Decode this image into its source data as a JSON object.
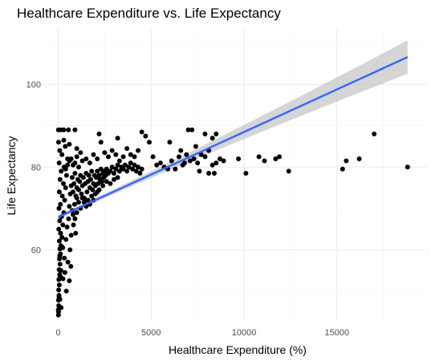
{
  "chart_data": {
    "type": "scatter",
    "title": "Healthcare Expenditure vs. Life Expectancy",
    "xlabel": "Healthcare Expenditure (%)",
    "ylabel": "Life Expectancy",
    "xlim": [
      -800,
      19800
    ],
    "ylim": [
      43,
      114
    ],
    "x_ticks": [
      0,
      5000,
      10000,
      15000
    ],
    "x_tick_labels": [
      "0",
      "5000",
      "10000",
      "15000"
    ],
    "y_ticks": [
      60,
      80,
      100
    ],
    "y_tick_labels": [
      "60",
      "80",
      "100"
    ],
    "grid": true,
    "point_color": "#000000",
    "fit": {
      "method": "linear",
      "color": "#3366ff",
      "band_color": "#bebebe",
      "x": [
        0,
        18800
      ],
      "y": [
        67.9,
        106.6
      ]
    },
    "points": [
      [
        10,
        44.2
      ],
      [
        20,
        45.0
      ],
      [
        30,
        46.5
      ],
      [
        15,
        47.8
      ],
      [
        40,
        49.0
      ],
      [
        25,
        50.3
      ],
      [
        60,
        51.5
      ],
      [
        35,
        52.8
      ],
      [
        80,
        54.0
      ],
      [
        50,
        55.2
      ],
      [
        100,
        56.5
      ],
      [
        70,
        57.8
      ],
      [
        120,
        59.0
      ],
      [
        90,
        60.2
      ],
      [
        150,
        61.0
      ],
      [
        60,
        62.1
      ],
      [
        200,
        63.0
      ],
      [
        130,
        64.0
      ],
      [
        30,
        65.0
      ],
      [
        250,
        66.0
      ],
      [
        80,
        67.0
      ],
      [
        180,
        68.0
      ],
      [
        300,
        69.0
      ],
      [
        40,
        70.0
      ],
      [
        120,
        71.0
      ],
      [
        350,
        72.0
      ],
      [
        220,
        73.0
      ],
      [
        60,
        74.0
      ],
      [
        400,
        75.0
      ],
      [
        280,
        76.0
      ],
      [
        100,
        77.0
      ],
      [
        450,
        78.0
      ],
      [
        160,
        79.0
      ],
      [
        320,
        80.0
      ],
      [
        50,
        81.0
      ],
      [
        500,
        82.0
      ],
      [
        200,
        83.0
      ],
      [
        80,
        84.0
      ],
      [
        380,
        85.0
      ],
      [
        20,
        86.0
      ],
      [
        10,
        89.0
      ],
      [
        150,
        89.0
      ],
      [
        300,
        89.0
      ],
      [
        550,
        89.0
      ],
      [
        900,
        89.0
      ],
      [
        5,
        45.5
      ],
      [
        45,
        48.5
      ],
      [
        110,
        53.5
      ],
      [
        75,
        58.5
      ],
      [
        140,
        55.0
      ],
      [
        260,
        53.0
      ],
      [
        330,
        58.0
      ],
      [
        420,
        62.5
      ],
      [
        480,
        65.5
      ],
      [
        560,
        67.5
      ],
      [
        640,
        60.0
      ],
      [
        700,
        63.5
      ],
      [
        760,
        69.5
      ],
      [
        820,
        66.0
      ],
      [
        880,
        71.0
      ],
      [
        940,
        64.0
      ],
      [
        1000,
        72.5
      ],
      [
        520,
        57.0
      ],
      [
        600,
        52.5
      ],
      [
        680,
        56.0
      ],
      [
        240,
        60.5
      ],
      [
        360,
        54.5
      ],
      [
        440,
        50.0
      ],
      [
        160,
        46.0
      ],
      [
        90,
        48.0
      ],
      [
        600,
        70.5
      ],
      [
        650,
        73.5
      ],
      [
        700,
        75.5
      ],
      [
        750,
        77.5
      ],
      [
        800,
        74.0
      ],
      [
        850,
        76.0
      ],
      [
        900,
        78.5
      ],
      [
        950,
        73.0
      ],
      [
        1000,
        75.0
      ],
      [
        1050,
        77.0
      ],
      [
        1100,
        74.5
      ],
      [
        1150,
        76.5
      ],
      [
        1200,
        78.0
      ],
      [
        1250,
        73.5
      ],
      [
        1300,
        75.5
      ],
      [
        1350,
        77.5
      ],
      [
        1400,
        72.5
      ],
      [
        1450,
        76.0
      ],
      [
        1500,
        78.5
      ],
      [
        1550,
        74.0
      ],
      [
        1600,
        76.5
      ],
      [
        1650,
        78.0
      ],
      [
        1700,
        75.0
      ],
      [
        1750,
        77.0
      ],
      [
        1800,
        79.0
      ],
      [
        1850,
        74.5
      ],
      [
        1900,
        76.0
      ],
      [
        1950,
        78.0
      ],
      [
        2000,
        75.5
      ],
      [
        2050,
        77.5
      ],
      [
        2100,
        79.0
      ],
      [
        2150,
        76.0
      ],
      [
        2200,
        78.0
      ],
      [
        2250,
        77.0
      ],
      [
        2300,
        79.5
      ],
      [
        2350,
        76.5
      ],
      [
        2400,
        78.5
      ],
      [
        2450,
        77.5
      ],
      [
        2500,
        79.0
      ],
      [
        2550,
        78.0
      ],
      [
        2600,
        79.5
      ],
      [
        2700,
        78.5
      ],
      [
        2800,
        79.0
      ],
      [
        2900,
        80.0
      ],
      [
        3000,
        78.5
      ],
      [
        3100,
        79.5
      ],
      [
        3200,
        80.5
      ],
      [
        3300,
        79.0
      ],
      [
        3400,
        80.0
      ],
      [
        3500,
        79.5
      ],
      [
        3600,
        80.5
      ],
      [
        3700,
        79.0
      ],
      [
        3800,
        80.0
      ],
      [
        3900,
        81.0
      ],
      [
        4000,
        79.5
      ],
      [
        4100,
        80.5
      ],
      [
        4200,
        79.0
      ],
      [
        4300,
        80.0
      ],
      [
        4400,
        78.5
      ],
      [
        4500,
        79.5
      ],
      [
        1200,
        70.0
      ],
      [
        1400,
        71.5
      ],
      [
        1600,
        72.0
      ],
      [
        1800,
        73.0
      ],
      [
        2000,
        73.5
      ],
      [
        2200,
        74.5
      ],
      [
        1000,
        69.0
      ],
      [
        1100,
        71.5
      ],
      [
        1300,
        72.5
      ],
      [
        1500,
        70.5
      ],
      [
        1700,
        71.0
      ],
      [
        900,
        67.5
      ],
      [
        800,
        68.5
      ],
      [
        1900,
        72.0
      ],
      [
        2100,
        74.0
      ],
      [
        2400,
        75.5
      ],
      [
        2600,
        76.5
      ],
      [
        2800,
        76.0
      ],
      [
        3000,
        77.0
      ],
      [
        3200,
        77.5
      ],
      [
        400,
        79.5
      ],
      [
        500,
        80.5
      ],
      [
        600,
        81.5
      ],
      [
        700,
        82.0
      ],
      [
        800,
        80.5
      ],
      [
        900,
        81.0
      ],
      [
        1000,
        82.5
      ],
      [
        1100,
        80.0
      ],
      [
        1200,
        83.5
      ],
      [
        1300,
        81.5
      ],
      [
        1500,
        82.0
      ],
      [
        1700,
        81.0
      ],
      [
        1900,
        83.0
      ],
      [
        2100,
        82.0
      ],
      [
        2300,
        86.0
      ],
      [
        2500,
        83.5
      ],
      [
        2700,
        82.5
      ],
      [
        2900,
        84.0
      ],
      [
        3100,
        83.0
      ],
      [
        3300,
        81.5
      ],
      [
        3500,
        82.5
      ],
      [
        3700,
        84.5
      ],
      [
        3900,
        83.0
      ],
      [
        4100,
        82.5
      ],
      [
        4300,
        84.0
      ],
      [
        4500,
        88.5
      ],
      [
        4700,
        87.5
      ],
      [
        4900,
        86.0
      ],
      [
        5100,
        82.5
      ],
      [
        5300,
        80.5
      ],
      [
        2200,
        88.0
      ],
      [
        3200,
        87.0
      ],
      [
        300,
        86.5
      ],
      [
        600,
        85.5
      ],
      [
        1000,
        84.5
      ],
      [
        5500,
        81.0
      ],
      [
        5700,
        80.0
      ],
      [
        5900,
        79.5
      ],
      [
        6100,
        81.5
      ],
      [
        6300,
        79.5
      ],
      [
        6500,
        82.5
      ],
      [
        6700,
        80.5
      ],
      [
        6900,
        83.0
      ],
      [
        7100,
        81.5
      ],
      [
        7300,
        82.0
      ],
      [
        7500,
        81.0
      ],
      [
        7700,
        83.0
      ],
      [
        7900,
        82.5
      ],
      [
        8100,
        84.0
      ],
      [
        8300,
        80.5
      ],
      [
        8500,
        81.0
      ],
      [
        8700,
        82.0
      ],
      [
        8900,
        81.5
      ],
      [
        6000,
        86.0
      ],
      [
        6600,
        84.0
      ],
      [
        7000,
        89.0
      ],
      [
        7200,
        89.0
      ],
      [
        7400,
        85.0
      ],
      [
        7900,
        88.0
      ],
      [
        8300,
        87.0
      ],
      [
        8500,
        88.0
      ],
      [
        7600,
        79.0
      ],
      [
        8100,
        78.5
      ],
      [
        8400,
        78.5
      ],
      [
        6800,
        81.0
      ],
      [
        9700,
        82.0
      ],
      [
        10100,
        78.5
      ],
      [
        10800,
        82.5
      ],
      [
        11100,
        81.5
      ],
      [
        11700,
        82.0
      ],
      [
        11900,
        82.5
      ],
      [
        12400,
        79.0
      ],
      [
        15300,
        79.5
      ],
      [
        15500,
        81.5
      ],
      [
        16200,
        82.0
      ],
      [
        17000,
        88.0
      ],
      [
        18800,
        80.0
      ]
    ]
  }
}
